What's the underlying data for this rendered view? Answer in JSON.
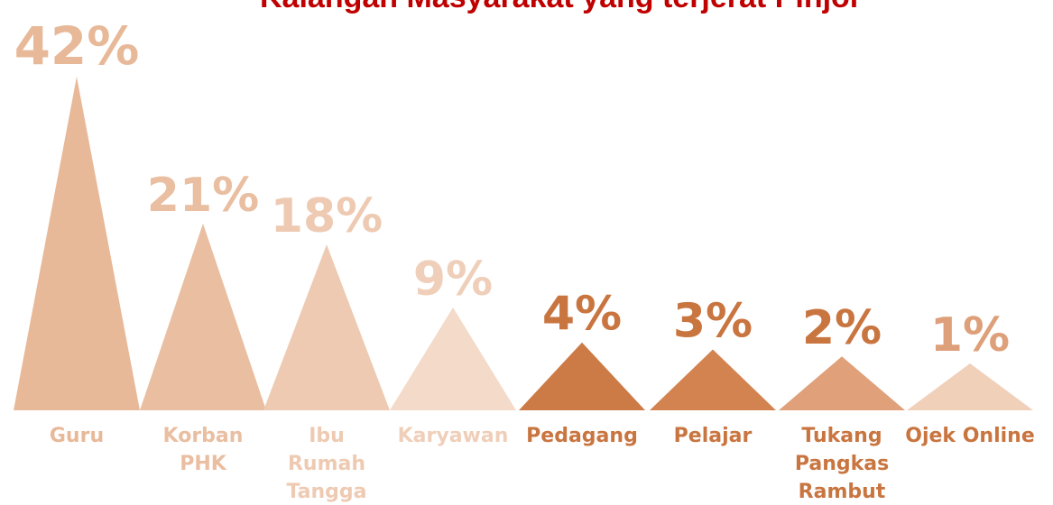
{
  "chart_data": {
    "type": "triangle",
    "title": "Kalangan Masyarakat yang terjerat Pinjol",
    "categories": [
      [
        "Guru"
      ],
      [
        "Korban",
        "PHK"
      ],
      [
        "Ibu",
        "Rumah",
        "Tangga"
      ],
      [
        "Karyawan"
      ],
      [
        "Pedagang"
      ],
      [
        "Pelajar"
      ],
      [
        "Tukang",
        "Pangkas",
        "Rambut"
      ],
      [
        "Ojek Online"
      ]
    ],
    "values": [
      42,
      21,
      18,
      9,
      4,
      3,
      2,
      1
    ],
    "value_labels": [
      "42%",
      "21%",
      "18%",
      "9%",
      "4%",
      "3%",
      "2%",
      "1%"
    ],
    "colors": [
      "#e8b999",
      "#e9bea1",
      "#eecab2",
      "#f3dac9",
      "#cc7b46",
      "#d3834f",
      "#dfa07a",
      "#f1d0ba"
    ],
    "label_colors": [
      "#e8b999",
      "#e9bea1",
      "#eecab2",
      "#efcfb9",
      "#c97540",
      "#c97540",
      "#c97540",
      "#c97540"
    ]
  }
}
